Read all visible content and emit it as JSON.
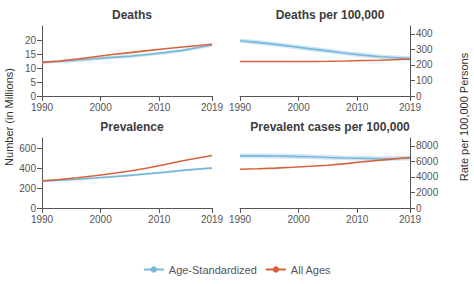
{
  "chart_data": [
    {
      "type": "line",
      "title": "Deaths",
      "ylabel": "Number (in Millions)",
      "x": [
        1990,
        1993,
        1996,
        1999,
        2002,
        2005,
        2008,
        2011,
        2014,
        2019
      ],
      "xlim": [
        1990,
        2019
      ],
      "xticks": [
        1990,
        2000,
        2010,
        2019
      ],
      "ylim": [
        0,
        25
      ],
      "yticks": [
        0,
        5,
        10,
        15,
        20
      ],
      "grid": false,
      "legend": "bottom",
      "series": [
        {
          "name": "Age-Standardized",
          "color": "#7ab8d9",
          "values": [
            12.0,
            12.3,
            12.8,
            13.3,
            13.8,
            14.2,
            14.8,
            15.5,
            16.3,
            18.2
          ],
          "lower": [
            11.5,
            11.8,
            12.2,
            12.7,
            13.2,
            13.6,
            14.2,
            14.9,
            15.7,
            17.6
          ],
          "upper": [
            12.5,
            12.8,
            13.4,
            13.9,
            14.4,
            14.8,
            15.4,
            16.1,
            16.9,
            18.8
          ]
        },
        {
          "name": "All Ages",
          "color": "#d9623b",
          "values": [
            12.0,
            12.5,
            13.2,
            14.0,
            14.8,
            15.5,
            16.2,
            16.9,
            17.5,
            18.5
          ]
        }
      ]
    },
    {
      "type": "line",
      "title": "Deaths per 100,000",
      "ylabel": "Rate per 100,000 Persons",
      "x": [
        1990,
        1993,
        1996,
        1999,
        2002,
        2005,
        2008,
        2011,
        2014,
        2019
      ],
      "xlim": [
        1990,
        2019
      ],
      "xticks": [
        1990,
        2000,
        2010,
        2019
      ],
      "ylim": [
        0,
        450
      ],
      "yticks": [
        0,
        100,
        200,
        300,
        400
      ],
      "grid": false,
      "series": [
        {
          "name": "Age-Standardized",
          "color": "#7ab8d9",
          "values": [
            355,
            345,
            332,
            318,
            303,
            290,
            275,
            263,
            252,
            240
          ],
          "lower": [
            340,
            330,
            317,
            303,
            288,
            275,
            260,
            248,
            237,
            225
          ],
          "upper": [
            370,
            360,
            347,
            333,
            318,
            305,
            290,
            278,
            267,
            255
          ]
        },
        {
          "name": "All Ages",
          "color": "#d9623b",
          "values": [
            222,
            222,
            222,
            222,
            222,
            223,
            225,
            228,
            230,
            238
          ]
        }
      ]
    },
    {
      "type": "line",
      "title": "Prevalence",
      "x": [
        1990,
        1993,
        1996,
        1999,
        2002,
        2005,
        2008,
        2011,
        2014,
        2019
      ],
      "xlim": [
        1990,
        2019
      ],
      "xticks": [
        1990,
        2000,
        2010,
        2019
      ],
      "ylim": [
        0,
        700
      ],
      "yticks": [
        0,
        200,
        400,
        600
      ],
      "grid": false,
      "series": [
        {
          "name": "Age-Standardized",
          "color": "#7ab8d9",
          "values": [
            270,
            278,
            288,
            300,
            313,
            326,
            342,
            358,
            376,
            400
          ],
          "lower": [
            258,
            266,
            276,
            288,
            301,
            314,
            330,
            346,
            364,
            388
          ],
          "upper": [
            282,
            290,
            300,
            312,
            325,
            338,
            354,
            370,
            388,
            412
          ]
        },
        {
          "name": "All Ages",
          "color": "#d9623b",
          "values": [
            270,
            285,
            302,
            322,
            345,
            370,
            400,
            435,
            472,
            525
          ]
        }
      ]
    },
    {
      "type": "line",
      "title": "Prevalent cases per 100,000",
      "x": [
        1990,
        1993,
        1996,
        1999,
        2002,
        2005,
        2008,
        2011,
        2014,
        2019
      ],
      "xlim": [
        1990,
        2019
      ],
      "xticks": [
        1990,
        2000,
        2010,
        2019
      ],
      "ylim": [
        0,
        9000
      ],
      "yticks": [
        0,
        2000,
        4000,
        6000,
        8000
      ],
      "grid": false,
      "series": [
        {
          "name": "Age-Standardized",
          "color": "#7ab8d9",
          "values": [
            6700,
            6700,
            6680,
            6640,
            6580,
            6500,
            6430,
            6380,
            6340,
            6400
          ],
          "lower": [
            6400,
            6400,
            6380,
            6340,
            6280,
            6200,
            6130,
            6080,
            6040,
            6100
          ],
          "upper": [
            7000,
            7000,
            6980,
            6940,
            6880,
            6800,
            6730,
            6680,
            6640,
            6700
          ]
        },
        {
          "name": "All Ages",
          "color": "#d9623b",
          "values": [
            4980,
            5050,
            5130,
            5230,
            5360,
            5500,
            5700,
            5950,
            6150,
            6500
          ]
        }
      ]
    }
  ]
}
